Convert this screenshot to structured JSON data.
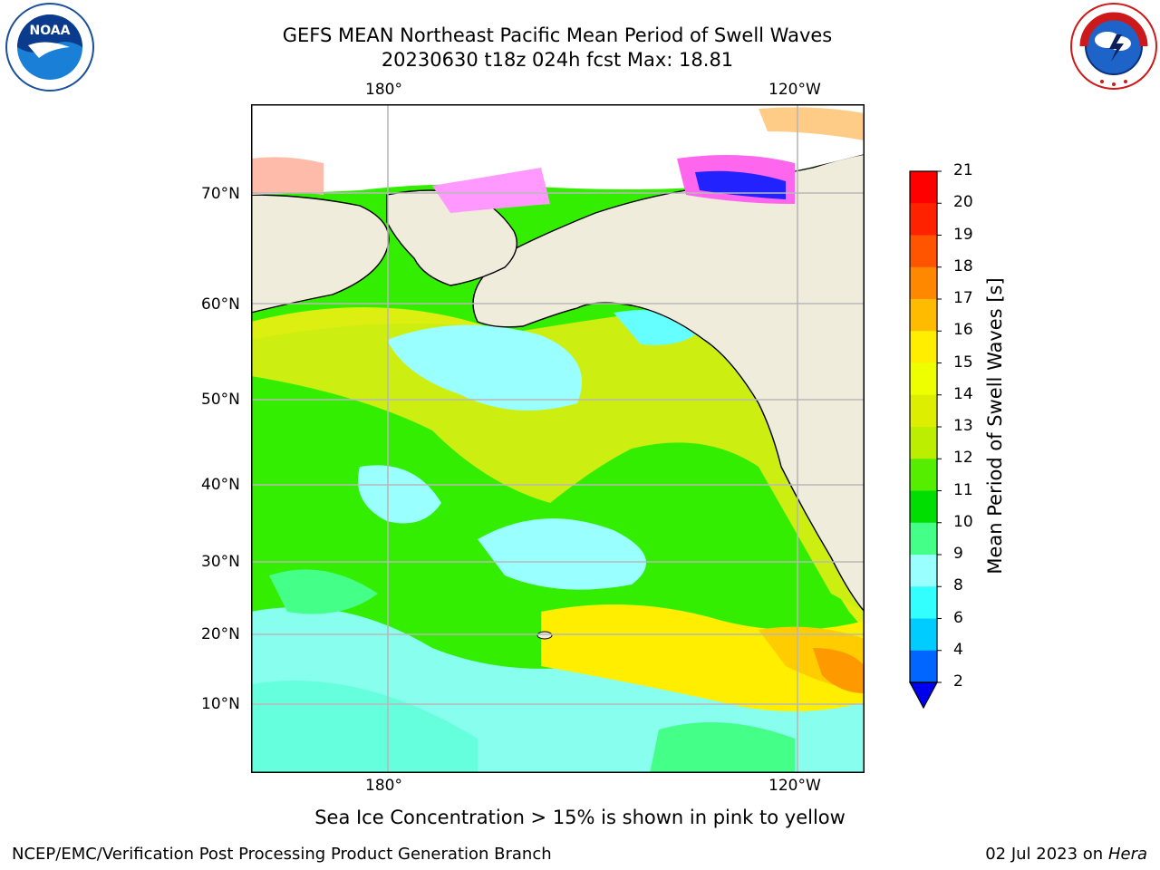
{
  "header": {
    "title_line1": "GEFS MEAN Northeast Pacific Mean Period of Swell Waves",
    "title_line2": "20230630 t18z 024h fcst   Max: 18.81"
  },
  "logos": {
    "left": {
      "name": "NOAA",
      "ring_text": "NATIONAL OCEANIC AND ATMOSPHERIC ADMINISTRATION · U.S. DEPARTMENT OF COMMERCE"
    },
    "right": {
      "name": "NATIONAL WEATHER SERVICE"
    }
  },
  "map": {
    "lon_labels_top": [
      "180°",
      "120°W"
    ],
    "lon_labels_bottom": [
      "180°",
      "120°W"
    ],
    "lat_labels": [
      "70°N",
      "60°N",
      "50°N",
      "40°N",
      "30°N",
      "20°N",
      "10°N"
    ],
    "land_color": "#efecdc",
    "grid_color": "#b8b8b8"
  },
  "colorbar": {
    "label": "Mean Period of Swell Waves [s]",
    "ticks": [
      "2",
      "4",
      "6",
      "8",
      "9",
      "10",
      "11",
      "12",
      "13",
      "14",
      "15",
      "16",
      "17",
      "18",
      "19",
      "20",
      "21"
    ],
    "colors": [
      "#0066ff",
      "#00ccff",
      "#33ffff",
      "#99ffff",
      "#44ff88",
      "#00dd00",
      "#55ee00",
      "#bbee00",
      "#ddee00",
      "#eeff00",
      "#ffee00",
      "#ffbb00",
      "#ff8800",
      "#ff5500",
      "#ff2200",
      "#ff0000"
    ],
    "under_color": "#0000ee"
  },
  "notes": {
    "ice": "Sea Ice Concentration > 15% is shown in pink to yellow"
  },
  "footer": {
    "left": "NCEP/EMC/Verification Post Processing Product Generation Branch",
    "right_prefix": "02 Jul 2023 on ",
    "right_machine": "Hera"
  }
}
